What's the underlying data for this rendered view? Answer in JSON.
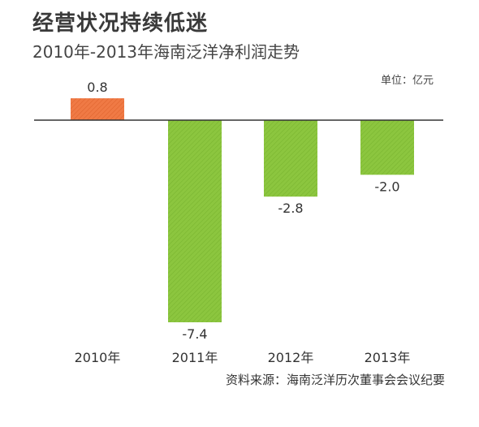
{
  "title": "经营状况持续低迷",
  "subtitle": "2010年-2013年海南泛洋净利润走势",
  "unit": "单位：亿元",
  "source": "资料来源：海南泛洋历次董事会会议纪要",
  "colors": {
    "positive": "#f07a45",
    "negative": "#8cc63f",
    "axis": "#333333"
  },
  "chart_data": {
    "type": "bar",
    "categories": [
      "2010年",
      "2011年",
      "2012年",
      "2013年"
    ],
    "values": [
      0.8,
      -7.4,
      -2.8,
      -2.0
    ],
    "value_labels": [
      "0.8",
      "-7.4",
      "-2.8",
      "-2.0"
    ],
    "ylim": [
      -7.4,
      0.8
    ],
    "grid": false,
    "legend": "none"
  }
}
